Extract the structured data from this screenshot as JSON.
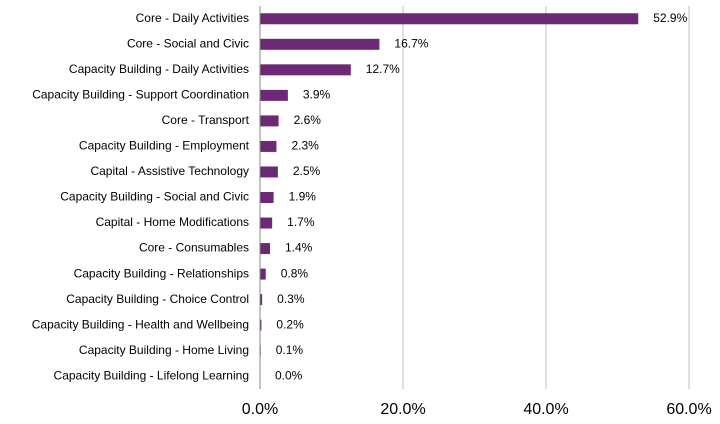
{
  "chart_data": {
    "type": "hbar",
    "categories": [
      "Core - Daily Activities",
      "Core - Social and Civic",
      "Capacity Building - Daily Activities",
      "Capacity Building - Support Coordination",
      "Core - Transport",
      "Capacity Building - Employment",
      "Capital - Assistive Technology",
      "Capacity Building - Social and Civic",
      "Capital - Home Modifications",
      "Core - Consumables",
      "Capacity Building - Relationships",
      "Capacity Building - Choice Control",
      "Capacity Building - Health and Wellbeing",
      "Capacity Building - Home Living",
      "Capacity Building - Lifelong Learning"
    ],
    "values": [
      52.9,
      16.7,
      12.7,
      3.9,
      2.6,
      2.3,
      2.5,
      1.9,
      1.7,
      1.4,
      0.8,
      0.3,
      0.2,
      0.1,
      0.0
    ],
    "value_labels": [
      "52.9%",
      "16.7%",
      "12.7%",
      "3.9%",
      "2.6%",
      "2.3%",
      "2.5%",
      "1.9%",
      "1.7%",
      "1.4%",
      "0.8%",
      "0.3%",
      "0.2%",
      "0.1%",
      "0.0%"
    ],
    "color": "#6b2a73",
    "xlim": [
      0,
      60
    ],
    "xticks": [
      {
        "value": 0,
        "label": "0.0%"
      },
      {
        "value": 20,
        "label": "20.0%"
      },
      {
        "value": 40,
        "label": "40.0%"
      },
      {
        "value": 60,
        "label": "60.0%"
      }
    ],
    "grid": true
  }
}
